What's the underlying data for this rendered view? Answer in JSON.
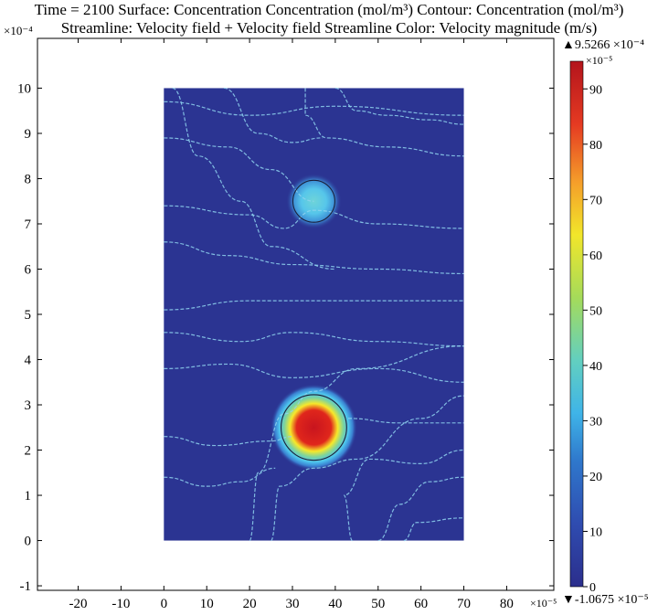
{
  "chart_data": {
    "type": "heatmap",
    "title_line1": "Time = 2100 Surface: Concentration Concentration (mol/m³) Contour: Concentration (mol/m³)",
    "title_line2": "Streamline: Velocity field + Velocity field   Streamline Color: Velocity magnitude (m/s)",
    "x_scale_label": "×10⁻⁵",
    "y_scale_label": "×10⁻⁴",
    "x_ticks": [
      -20,
      -10,
      0,
      10,
      20,
      30,
      40,
      50,
      60,
      70,
      80
    ],
    "y_ticks": [
      -1,
      0,
      1,
      2,
      3,
      4,
      5,
      6,
      7,
      8,
      9,
      10
    ],
    "xlim": [
      -29.5,
      91
    ],
    "ylim": [
      -1.1,
      11.1
    ],
    "domain": {
      "x": [
        0,
        70
      ],
      "y": [
        0,
        10
      ]
    },
    "sources": [
      {
        "x": 35,
        "y": 2.5,
        "r": 7.5,
        "peak": 95
      },
      {
        "x": 35,
        "y": 7.5,
        "r": 4.8,
        "peak": 32
      }
    ],
    "colorbar": {
      "max_label": "▲9.5266 ×10⁻⁴",
      "min_label": "▼-1.0675 ×10⁻⁵",
      "unit_label": "×10⁻⁵",
      "ticks": [
        0,
        10,
        20,
        30,
        40,
        50,
        60,
        70,
        80,
        90
      ],
      "range": [
        0,
        95
      ]
    },
    "background_color": "#2b3492",
    "streamline_color": "#8fd4ef"
  }
}
